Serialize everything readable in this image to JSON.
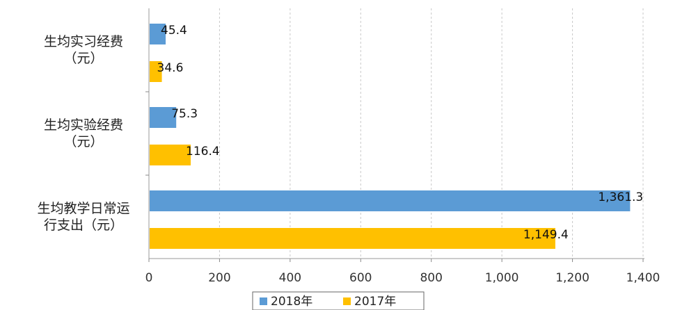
{
  "chart_data": {
    "type": "bar",
    "orientation": "horizontal",
    "categories": [
      [
        "生均实习经费",
        "（元）"
      ],
      [
        "生均实验经费",
        "（元）"
      ],
      [
        "生均教学日常运",
        "行支出（元）"
      ]
    ],
    "series": [
      {
        "name": "2018年",
        "color": "#5b9bd5",
        "values": [
          45.4,
          75.3,
          1361.3
        ],
        "labels": [
          "45.4",
          "75.3",
          "1,361.3"
        ]
      },
      {
        "name": "2017年",
        "color": "#ffc000",
        "values": [
          34.6,
          116.4,
          1149.4
        ],
        "labels": [
          "34.6",
          "116.4",
          "1,149.4"
        ]
      }
    ],
    "xlim": [
      0,
      1400
    ],
    "xticks": [
      0,
      200,
      400,
      600,
      800,
      1000,
      1200,
      1400
    ],
    "xtick_labels": [
      "0",
      "200",
      "400",
      "600",
      "800",
      "1,000",
      "1,200",
      "1,400"
    ],
    "grid": true,
    "legend": "bottom",
    "title": "",
    "xlabel": "",
    "ylabel": ""
  }
}
